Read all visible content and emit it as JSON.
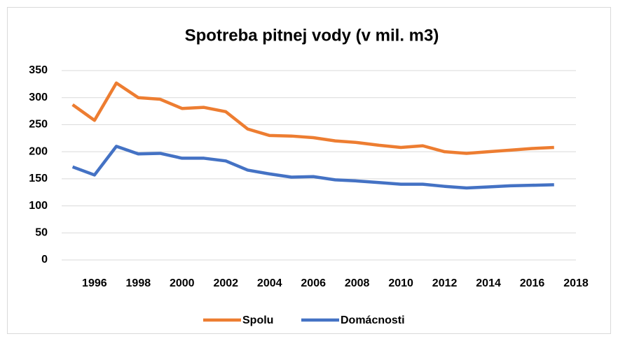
{
  "chart_data": {
    "type": "line",
    "title": "Spotreba pitnej vody (v mil. m3)",
    "x": [
      1995,
      1996,
      1997,
      1998,
      1999,
      2000,
      2001,
      2002,
      2003,
      2004,
      2005,
      2006,
      2007,
      2008,
      2009,
      2010,
      2011,
      2012,
      2013,
      2014,
      2015,
      2016,
      2017
    ],
    "series": [
      {
        "name": "Spolu",
        "color": "#ed7d31",
        "values": [
          287,
          258,
          327,
          300,
          297,
          280,
          282,
          274,
          242,
          230,
          229,
          226,
          220,
          217,
          212,
          208,
          211,
          200,
          197,
          200,
          203,
          206,
          208
        ]
      },
      {
        "name": "Domácnosti",
        "color": "#4472c4",
        "values": [
          172,
          157,
          210,
          196,
          197,
          188,
          188,
          183,
          166,
          159,
          153,
          154,
          148,
          146,
          143,
          140,
          140,
          136,
          133,
          135,
          137,
          138,
          139
        ]
      }
    ],
    "xlim": [
      1994.5,
      2018
    ],
    "xticks": [
      1996,
      1998,
      2000,
      2002,
      2004,
      2006,
      2008,
      2010,
      2012,
      2014,
      2016,
      2018
    ],
    "ylim": [
      0,
      350
    ],
    "yticks": [
      0,
      50,
      100,
      150,
      200,
      250,
      300,
      350
    ],
    "grid": true,
    "legend": "bottom"
  }
}
